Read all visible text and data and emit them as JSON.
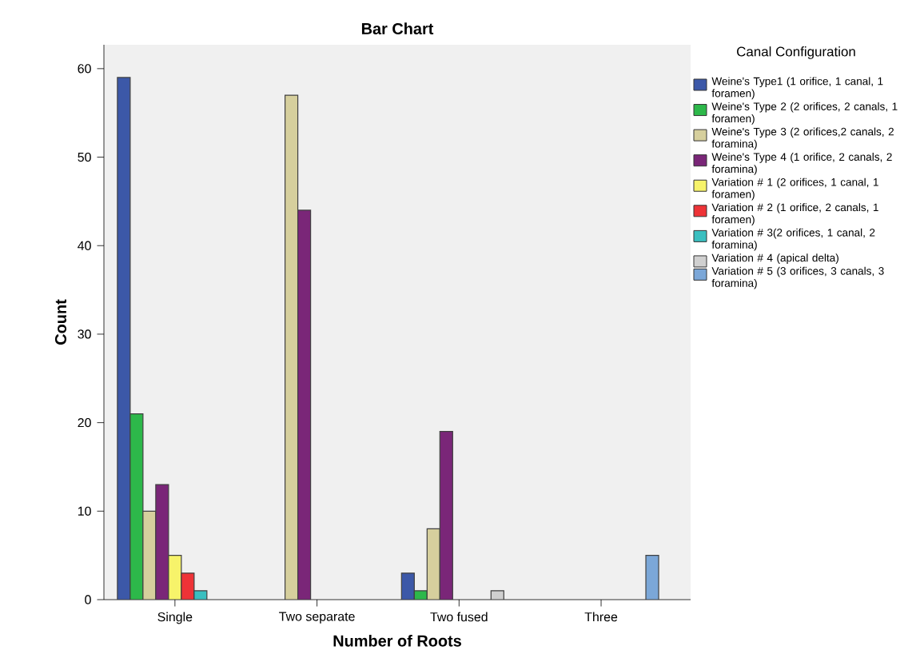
{
  "chart_data": {
    "type": "bar",
    "title": "Bar Chart",
    "xlabel": "Number of Roots",
    "ylabel": "Count",
    "legend_title": "Canal Configuration",
    "categories": [
      "Single",
      "Two separate",
      "Two fused",
      "Three"
    ],
    "series": [
      {
        "name": "Weine's Type1 (1 orifice, 1 canal, 1 foramen)",
        "color": "#3c58a8",
        "values": [
          59,
          null,
          3,
          null
        ]
      },
      {
        "name": "Weine's Type 2 (2 orifices, 2 canals, 1 foramen)",
        "color": "#2db84a",
        "values": [
          21,
          null,
          1,
          null
        ]
      },
      {
        "name": "Weine's Type 3 (2 orifices,2 canals, 2 foramina)",
        "color": "#d6cf9d",
        "values": [
          10,
          57,
          8,
          null
        ]
      },
      {
        "name": "Weine's Type 4 (1 orifice, 2 canals, 2 foramina)",
        "color": "#7a2678",
        "values": [
          13,
          44,
          19,
          null
        ]
      },
      {
        "name": "Variation # 1 (2 orifices, 1 canal, 1 foramen)",
        "color": "#f7f36a",
        "values": [
          5,
          null,
          null,
          null
        ]
      },
      {
        "name": "Variation # 2 (1 orifice, 2 canals, 1 foramen)",
        "color": "#ee3337",
        "values": [
          3,
          null,
          null,
          null
        ]
      },
      {
        "name": "Variation # 3(2 orifices, 1 canal, 2 foramina)",
        "color": "#3abfc0",
        "values": [
          1,
          null,
          null,
          null
        ]
      },
      {
        "name": "Variation # 4 (apical delta)",
        "color": "#d0d0d0",
        "values": [
          null,
          null,
          1,
          null
        ]
      },
      {
        "name": "Variation # 5 (3 orifices, 3 canals, 3 foramina)",
        "color": "#7ba7d8",
        "values": [
          null,
          null,
          null,
          5
        ]
      }
    ],
    "ylim": [
      0,
      62.7
    ],
    "yticks": [
      0,
      10,
      20,
      30,
      40,
      50,
      60
    ],
    "legend": "right"
  }
}
